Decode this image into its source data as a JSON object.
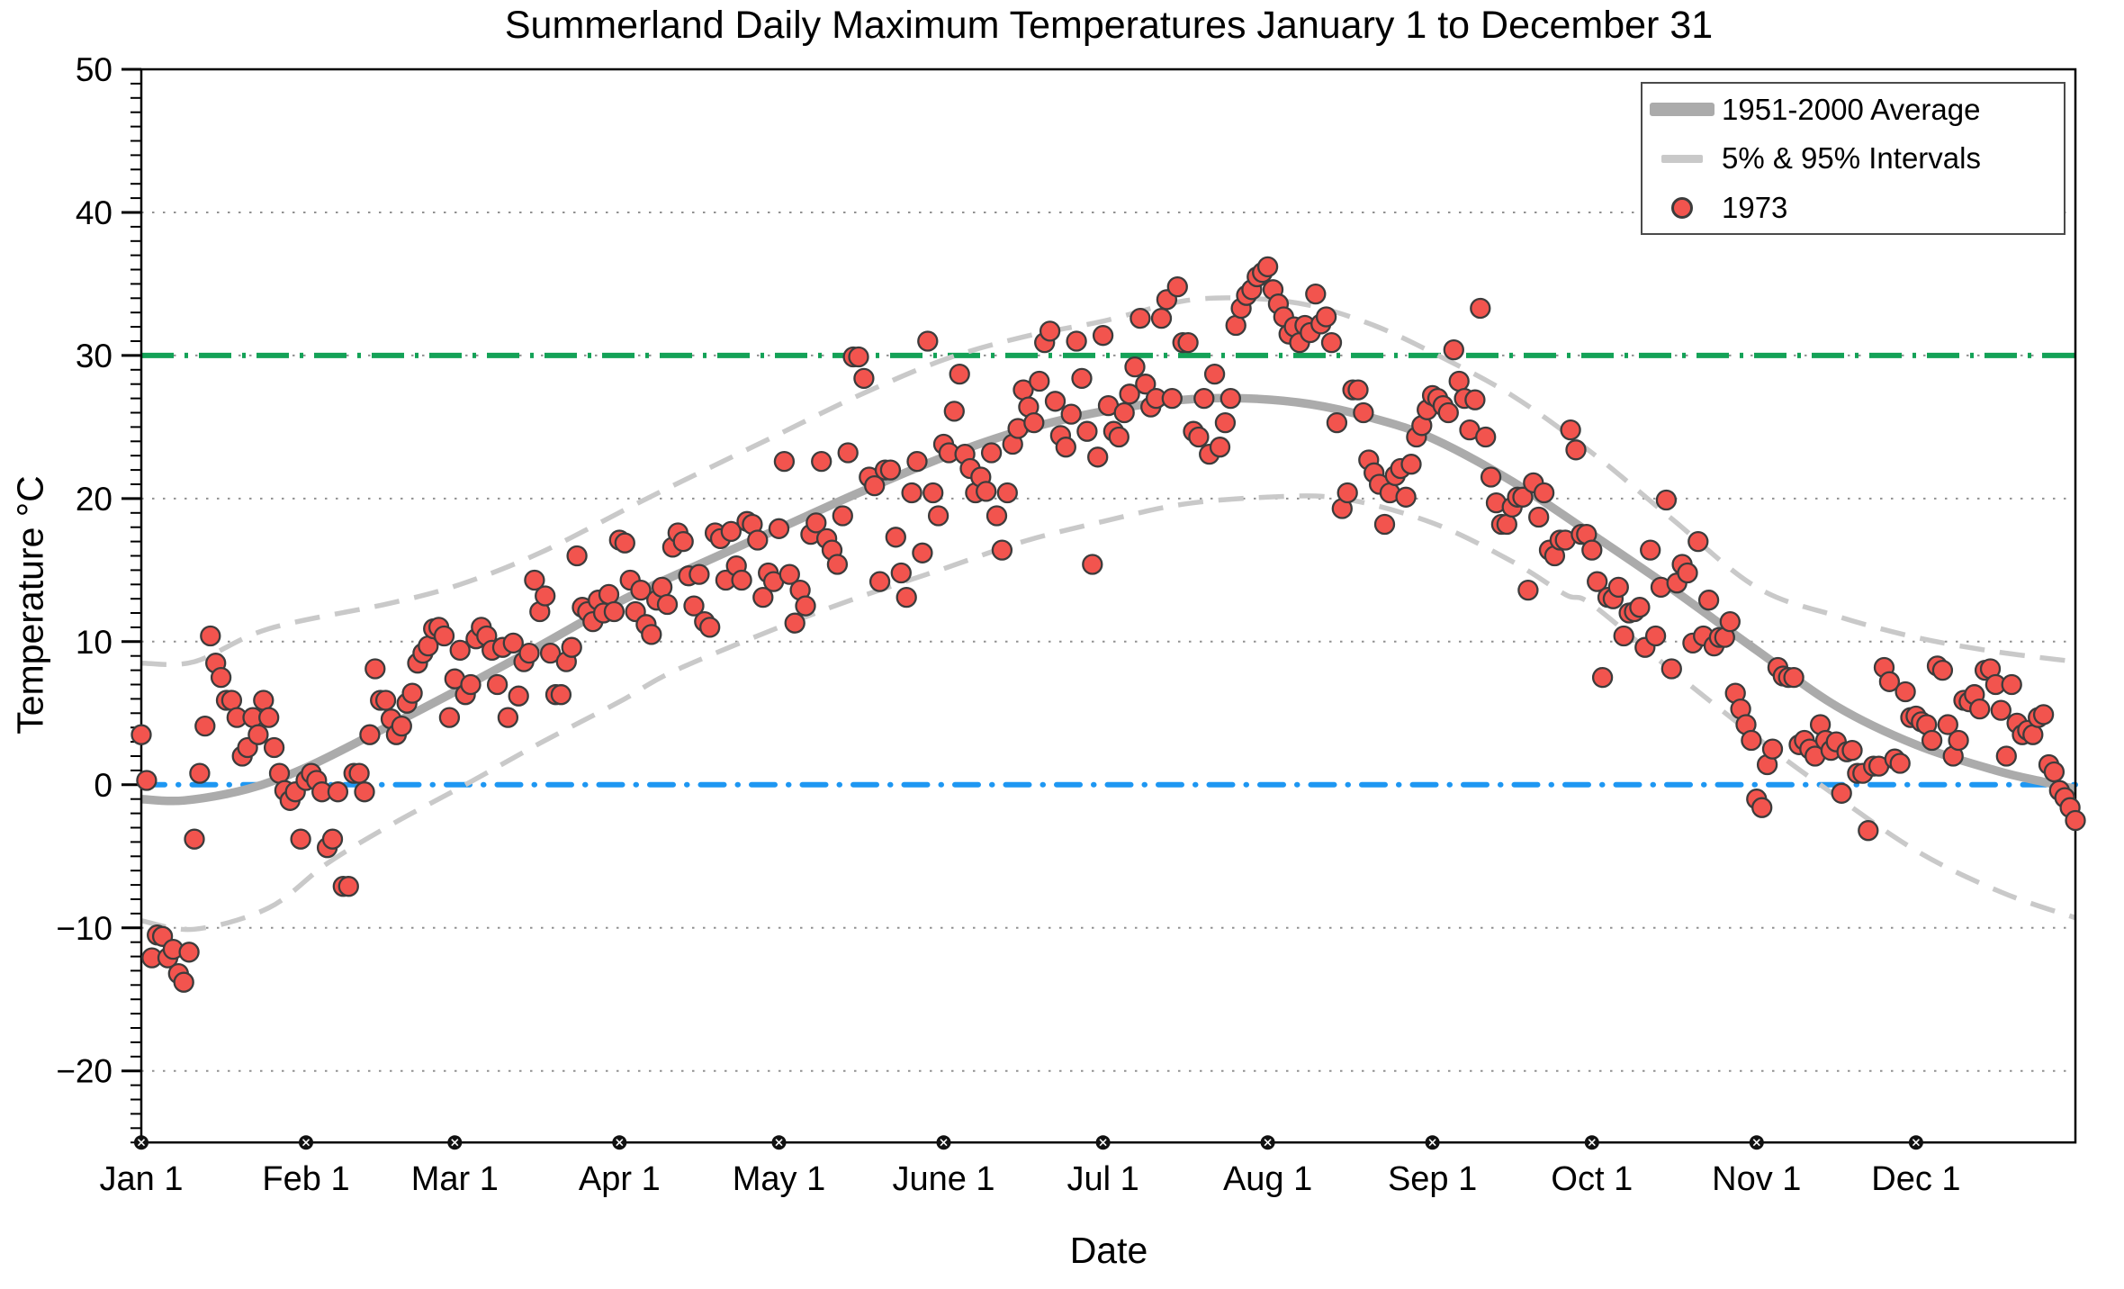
{
  "title": "Summerland Daily Maximum Temperatures January 1 to December 31",
  "axes": {
    "xlabel": "Date",
    "ylabel": "Temperature °C",
    "x_tick_labels": [
      "Jan 1",
      "Feb 1",
      "Mar 1",
      "Apr 1",
      "May 1",
      "June 1",
      "Jul 1",
      "Aug 1",
      "Sep 1",
      "Oct 1",
      "Nov 1",
      "Dec 1"
    ],
    "month_start_days": [
      0,
      31,
      59,
      90,
      120,
      151,
      181,
      212,
      243,
      273,
      304,
      334
    ],
    "y_major_ticks": [
      50,
      40,
      30,
      20,
      10,
      0,
      -10,
      -20
    ],
    "y_gridlines": [
      40,
      30,
      20,
      10,
      -10,
      -20
    ],
    "ylim": [
      -25,
      50
    ],
    "xlim_days": [
      0,
      364
    ],
    "minor_tick_step": 1
  },
  "legend": {
    "items": [
      {
        "label": "1951-2000 Average",
        "swatch": "thick-gray-line"
      },
      {
        "label": "5% & 95% Intervals",
        "swatch": "gray-dash"
      },
      {
        "label": "1973",
        "swatch": "red-dot"
      }
    ]
  },
  "colors": {
    "scatter_fill": "#F2544E",
    "scatter_edge": "#3C3C3C",
    "average_line": "#ABABAB",
    "interval_line": "#C9C9C9",
    "ref_30C": "#14A257",
    "ref_0C": "#1E97F2",
    "grid": "#909090",
    "axis": "#000000"
  },
  "chart_data": {
    "type": "scatter",
    "title": "Summerland Daily Maximum Temperatures January 1 to December 31",
    "xlabel": "Date",
    "ylabel": "Temperature °C",
    "x_unit": "day of year (0 = Jan 1)",
    "ylim": [
      -25,
      50
    ],
    "grid": "dotted horizontal at 10°C steps",
    "legend_position": "top-right",
    "reference_lines": [
      {
        "value": 30,
        "style": "dash-dot",
        "color": "#14A257",
        "name": "30C-line"
      },
      {
        "value": 0,
        "style": "dash-dot",
        "color": "#1E97F2",
        "name": "0C-line"
      }
    ],
    "series": [
      {
        "name": "1951-2000 Average",
        "type": "line",
        "anchors": [
          [
            0,
            -1.0
          ],
          [
            8,
            -1.1
          ],
          [
            20,
            -0.3
          ],
          [
            31,
            1.2
          ],
          [
            45,
            3.8
          ],
          [
            59,
            6.5
          ],
          [
            74,
            9.5
          ],
          [
            90,
            12.8
          ],
          [
            105,
            15.4
          ],
          [
            120,
            17.9
          ],
          [
            135,
            20.4
          ],
          [
            151,
            22.9
          ],
          [
            166,
            24.8
          ],
          [
            181,
            26.1
          ],
          [
            196,
            26.9
          ],
          [
            208,
            27.0
          ],
          [
            220,
            26.6
          ],
          [
            232,
            25.6
          ],
          [
            243,
            24.2
          ],
          [
            258,
            21.2
          ],
          [
            273,
            17.5
          ],
          [
            288,
            13.7
          ],
          [
            304,
            9.4
          ],
          [
            319,
            5.5
          ],
          [
            334,
            2.8
          ],
          [
            349,
            1.0
          ],
          [
            358,
            0.2
          ],
          [
            364,
            -0.3
          ]
        ]
      },
      {
        "name": "95% Interval",
        "type": "line",
        "anchors": [
          [
            0,
            8.5
          ],
          [
            10,
            8.6
          ],
          [
            24,
            10.9
          ],
          [
            47,
            12.7
          ],
          [
            60,
            14.0
          ],
          [
            75,
            16.2
          ],
          [
            93,
            19.6
          ],
          [
            105,
            21.8
          ],
          [
            120,
            24.5
          ],
          [
            135,
            27.2
          ],
          [
            151,
            29.7
          ],
          [
            166,
            31.3
          ],
          [
            181,
            32.4
          ],
          [
            196,
            33.8
          ],
          [
            208,
            34.0
          ],
          [
            220,
            33.5
          ],
          [
            232,
            32.1
          ],
          [
            243,
            30.2
          ],
          [
            258,
            27.2
          ],
          [
            273,
            23.2
          ],
          [
            288,
            18.6
          ],
          [
            304,
            13.8
          ],
          [
            319,
            11.8
          ],
          [
            334,
            10.3
          ],
          [
            349,
            9.3
          ],
          [
            364,
            8.6
          ]
        ]
      },
      {
        "name": "5% Interval",
        "type": "line",
        "anchors": [
          [
            0,
            -9.5
          ],
          [
            10,
            -10.1
          ],
          [
            24,
            -8.6
          ],
          [
            35,
            -5.5
          ],
          [
            47,
            -2.8
          ],
          [
            61,
            0.0
          ],
          [
            75,
            2.9
          ],
          [
            90,
            5.8
          ],
          [
            100,
            7.9
          ],
          [
            120,
            11.0
          ],
          [
            135,
            13.1
          ],
          [
            151,
            15.1
          ],
          [
            166,
            17.0
          ],
          [
            181,
            18.4
          ],
          [
            196,
            19.6
          ],
          [
            212,
            20.1
          ],
          [
            226,
            20.0
          ],
          [
            243,
            18.3
          ],
          [
            258,
            15.6
          ],
          [
            268,
            13.3
          ],
          [
            273,
            12.6
          ],
          [
            288,
            8.0
          ],
          [
            304,
            3.3
          ],
          [
            316,
            0.0
          ],
          [
            334,
            -4.6
          ],
          [
            350,
            -7.5
          ],
          [
            364,
            -9.3
          ]
        ]
      },
      {
        "name": "1973",
        "type": "scatter",
        "start": "Jan 1",
        "values": [
          3.5,
          0.3,
          -12.1,
          -10.5,
          -10.6,
          -12.1,
          -11.5,
          -13.2,
          -13.8,
          -11.7,
          -3.8,
          0.8,
          4.1,
          10.4,
          8.5,
          7.5,
          5.9,
          5.9,
          4.7,
          2.0,
          2.6,
          4.7,
          3.5,
          5.9,
          4.7,
          2.6,
          0.8,
          -0.4,
          -1.1,
          -0.5,
          -3.8,
          0.3,
          0.8,
          0.3,
          -0.5,
          -4.4,
          -3.8,
          -0.5,
          -7.1,
          -7.1,
          0.8,
          0.8,
          -0.5,
          3.5,
          8.1,
          5.9,
          5.9,
          4.6,
          3.5,
          4.1,
          5.7,
          6.4,
          8.5,
          9.2,
          9.7,
          10.9,
          11.0,
          10.4,
          4.7,
          7.4,
          9.4,
          6.3,
          7.0,
          10.2,
          11.0,
          10.4,
          9.4,
          7.0,
          9.6,
          4.7,
          9.9,
          6.2,
          8.6,
          9.2,
          14.3,
          12.1,
          13.2,
          9.2,
          6.3,
          6.3,
          8.6,
          9.6,
          16.0,
          12.4,
          12.1,
          11.4,
          12.9,
          12.0,
          13.3,
          12.1,
          17.1,
          16.9,
          14.3,
          12.1,
          13.6,
          11.2,
          10.5,
          12.9,
          13.8,
          12.6,
          16.6,
          17.6,
          17.0,
          14.6,
          12.5,
          14.7,
          11.4,
          11.0,
          17.6,
          17.2,
          14.3,
          17.7,
          15.3,
          14.3,
          18.4,
          18.2,
          17.1,
          13.1,
          14.8,
          14.2,
          17.9,
          22.6,
          14.7,
          11.3,
          13.6,
          12.5,
          17.5,
          18.3,
          22.6,
          17.2,
          16.4,
          15.4,
          18.8,
          23.2,
          29.9,
          29.9,
          28.4,
          21.5,
          20.9,
          14.2,
          22.0,
          22.0,
          17.3,
          14.8,
          13.1,
          20.4,
          22.6,
          16.2,
          31.0,
          20.4,
          18.8,
          23.8,
          23.2,
          26.1,
          28.7,
          23.1,
          22.1,
          20.4,
          21.5,
          20.5,
          23.2,
          18.8,
          16.4,
          20.4,
          23.8,
          24.9,
          27.6,
          26.4,
          25.3,
          28.2,
          30.9,
          31.7,
          26.8,
          24.4,
          23.6,
          25.9,
          31.0,
          28.4,
          24.7,
          15.4,
          22.9,
          31.4,
          26.5,
          24.7,
          24.3,
          26.0,
          27.3,
          29.2,
          32.6,
          28.0,
          26.4,
          27.0,
          32.6,
          33.9,
          27.0,
          34.8,
          30.9,
          30.9,
          24.7,
          24.3,
          27.0,
          23.1,
          28.7,
          23.6,
          25.3,
          27.0,
          32.1,
          33.3,
          34.2,
          34.6,
          35.5,
          35.8,
          36.2,
          34.6,
          33.6,
          32.7,
          31.5,
          32.0,
          30.9,
          32.1,
          31.6,
          34.3,
          32.2,
          32.7,
          30.9,
          25.3,
          19.3,
          20.4,
          27.6,
          27.6,
          26.0,
          22.7,
          21.8,
          21.0,
          18.2,
          20.4,
          21.6,
          22.1,
          20.1,
          22.4,
          24.3,
          25.1,
          26.2,
          27.2,
          27.0,
          26.5,
          26.0,
          30.4,
          28.2,
          27.0,
          24.8,
          26.9,
          33.3,
          24.3,
          21.5,
          19.7,
          18.2,
          18.2,
          19.4,
          20.1,
          20.1,
          13.6,
          21.1,
          18.7,
          20.4,
          16.4,
          16.0,
          17.1,
          17.1,
          24.8,
          23.4,
          17.5,
          17.5,
          16.4,
          14.2,
          7.5,
          13.1,
          13.0,
          13.8,
          10.4,
          12.0,
          12.1,
          12.4,
          9.6,
          16.4,
          10.4,
          13.8,
          19.9,
          8.1,
          14.1,
          15.4,
          14.8,
          9.9,
          17.0,
          10.4,
          12.9,
          9.7,
          10.3,
          10.3,
          11.4,
          6.4,
          5.3,
          4.2,
          3.1,
          -1.0,
          -1.6,
          1.4,
          2.5,
          8.2,
          7.6,
          7.5,
          7.5,
          2.8,
          3.1,
          2.5,
          2.0,
          4.2,
          3.1,
          2.4,
          3.0,
          -0.6,
          2.3,
          2.4,
          0.8,
          0.8,
          -3.2,
          1.3,
          1.3,
          8.2,
          7.2,
          1.8,
          1.5,
          6.5,
          4.7,
          4.8,
          4.4,
          4.2,
          3.1,
          8.3,
          8.0,
          4.2,
          2.0,
          3.1,
          5.9,
          5.8,
          6.3,
          5.3,
          8.0,
          8.1,
          7.0,
          5.2,
          2.0,
          7.0,
          4.3,
          3.5,
          3.8,
          3.5,
          4.7,
          4.9,
          1.4,
          0.9,
          -0.4,
          -0.9,
          -1.6,
          -2.5
        ]
      }
    ]
  }
}
